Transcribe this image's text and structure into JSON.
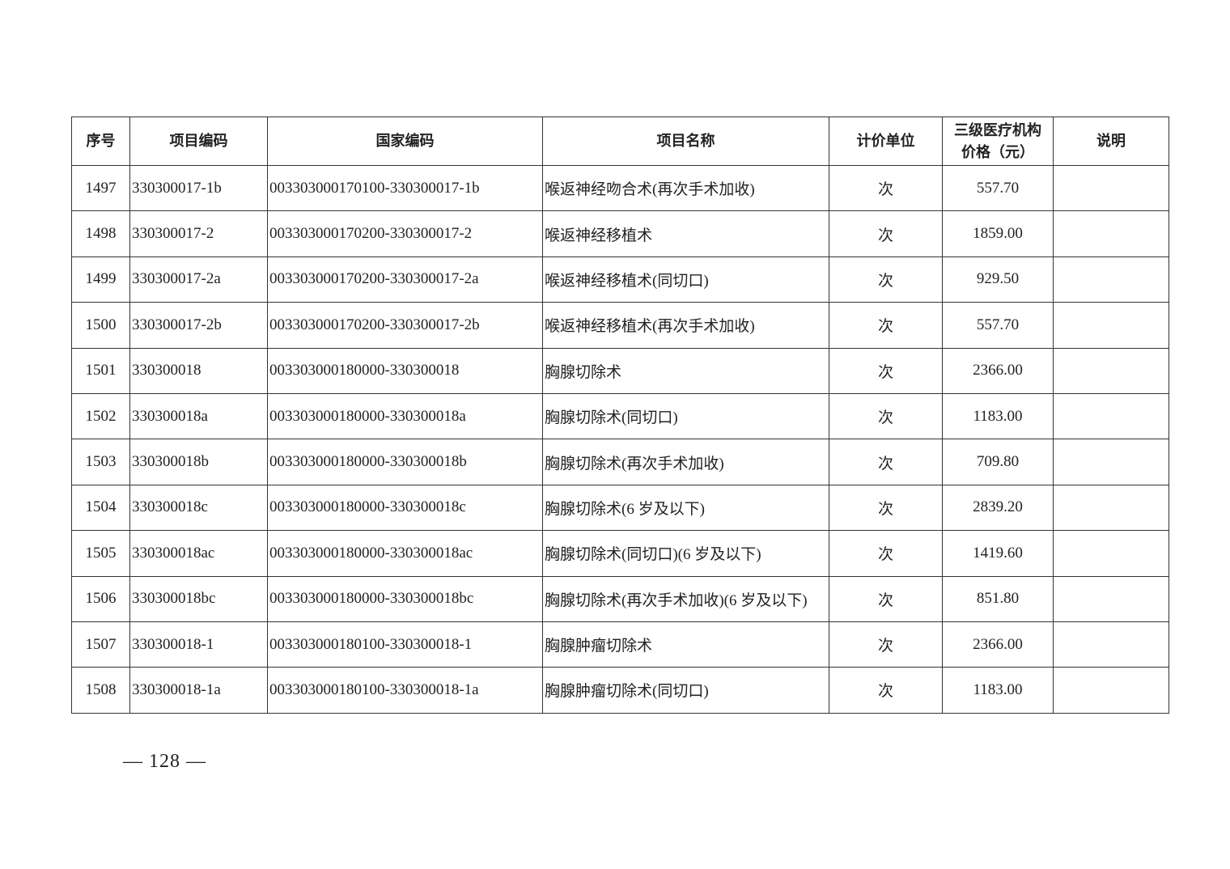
{
  "table": {
    "headers": [
      "序号",
      "项目编码",
      "国家编码",
      "项目名称",
      "计价单位",
      "三级医疗机构价格（元）",
      "说明"
    ],
    "header_price_line1": "三级医疗机构",
    "header_price_line2": "价格（元）",
    "rows": [
      [
        "1497",
        "330300017-1b",
        "003303000170100-330300017-1b",
        "喉返神经吻合术(再次手术加收)",
        "次",
        "557.70",
        ""
      ],
      [
        "1498",
        "330300017-2",
        "003303000170200-330300017-2",
        "喉返神经移植术",
        "次",
        "1859.00",
        ""
      ],
      [
        "1499",
        "330300017-2a",
        "003303000170200-330300017-2a",
        "喉返神经移植术(同切口)",
        "次",
        "929.50",
        ""
      ],
      [
        "1500",
        "330300017-2b",
        "003303000170200-330300017-2b",
        "喉返神经移植术(再次手术加收)",
        "次",
        "557.70",
        ""
      ],
      [
        "1501",
        "330300018",
        "003303000180000-330300018",
        "胸腺切除术",
        "次",
        "2366.00",
        ""
      ],
      [
        "1502",
        "330300018a",
        "003303000180000-330300018a",
        "胸腺切除术(同切口)",
        "次",
        "1183.00",
        ""
      ],
      [
        "1503",
        "330300018b",
        "003303000180000-330300018b",
        "胸腺切除术(再次手术加收)",
        "次",
        "709.80",
        ""
      ],
      [
        "1504",
        "330300018c",
        "003303000180000-330300018c",
        "胸腺切除术(6 岁及以下)",
        "次",
        "2839.20",
        ""
      ],
      [
        "1505",
        "330300018ac",
        "003303000180000-330300018ac",
        "胸腺切除术(同切口)(6 岁及以下)",
        "次",
        "1419.60",
        ""
      ],
      [
        "1506",
        "330300018bc",
        "003303000180000-330300018bc",
        "胸腺切除术(再次手术加收)(6 岁及以下)",
        "次",
        "851.80",
        ""
      ],
      [
        "1507",
        "330300018-1",
        "003303000180100-330300018-1",
        "胸腺肿瘤切除术",
        "次",
        "2366.00",
        ""
      ],
      [
        "1508",
        "330300018-1a",
        "003303000180100-330300018-1a",
        "胸腺肿瘤切除术(同切口)",
        "次",
        "1183.00",
        ""
      ]
    ]
  },
  "footer": {
    "page_number": "— 128 —"
  }
}
